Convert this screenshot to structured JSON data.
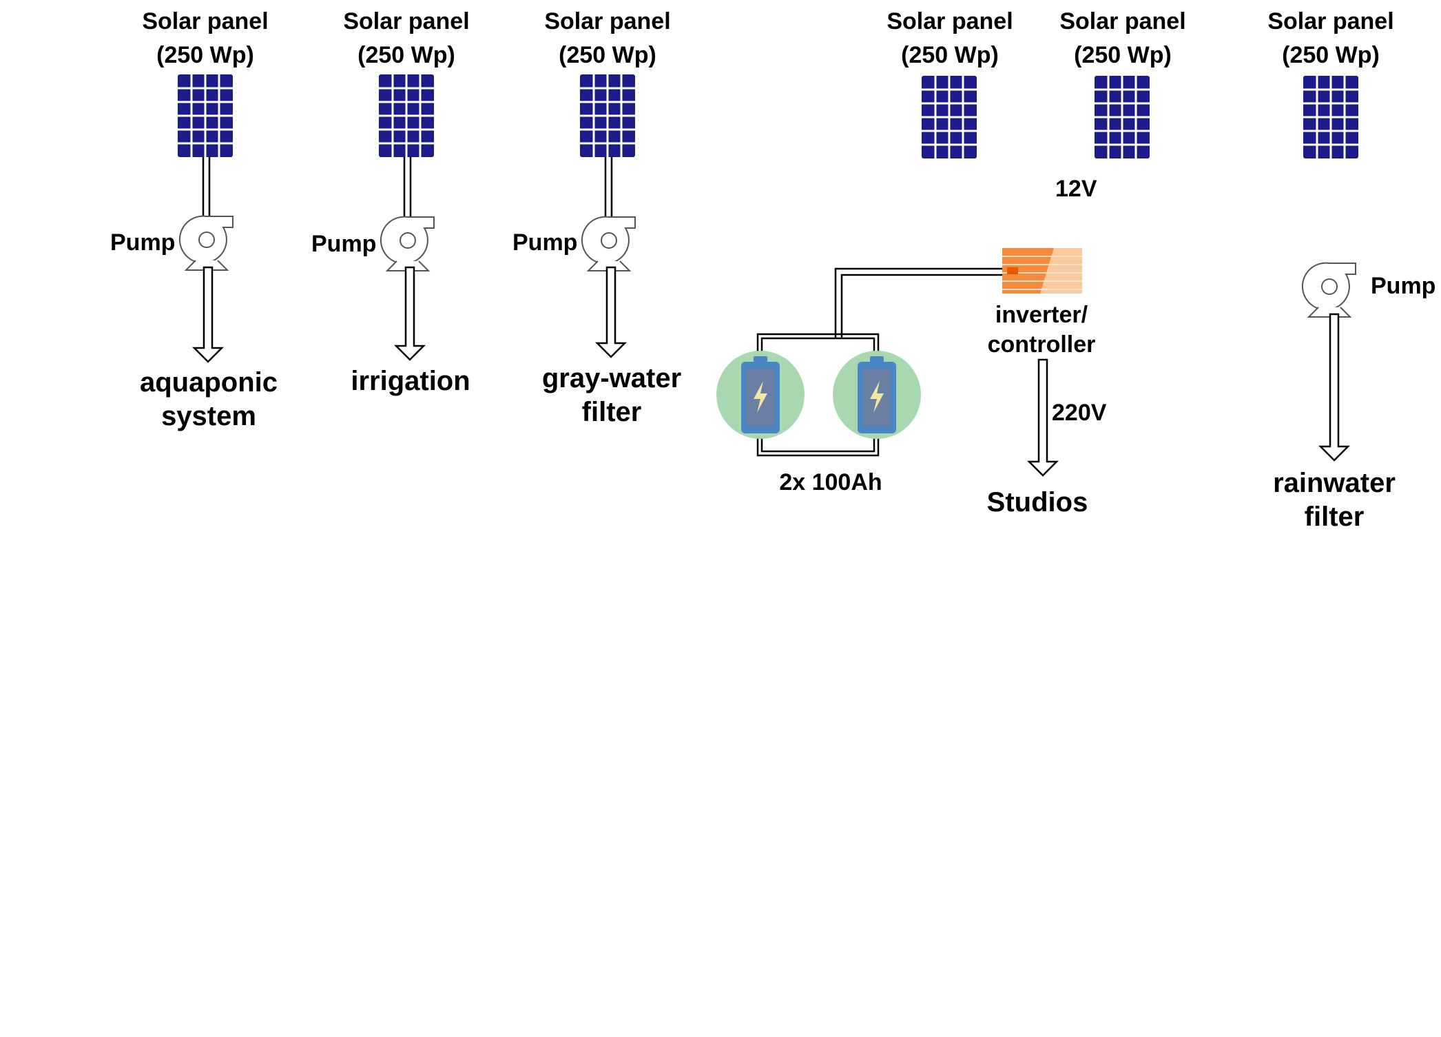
{
  "panels": [
    {
      "name": "Solar panel",
      "rating": "(250 Wp)"
    },
    {
      "name": "Solar panel",
      "rating": "(250 Wp)"
    },
    {
      "name": "Solar panel",
      "rating": "(250 Wp)"
    },
    {
      "name": "Solar panel",
      "rating": "(250 Wp)"
    },
    {
      "name": "Solar panel",
      "rating": "(250 Wp)"
    },
    {
      "name": "Solar panel",
      "rating": "(250 Wp)"
    }
  ],
  "pumps": [
    "Pump",
    "Pump",
    "Pump",
    "Pump"
  ],
  "destinations": {
    "aquaponic": [
      "aquaponic",
      "system"
    ],
    "irrigation": "irrigation",
    "graywater": [
      "gray-water",
      "filter"
    ],
    "studios": "Studios",
    "rainwater": [
      "rainwater",
      "filter"
    ]
  },
  "voltage_dc": "12V",
  "voltage_ac": "220V",
  "inverter": [
    "inverter/",
    "controller"
  ],
  "battery_label": "2x 100Ah",
  "colors": {
    "panel": "#1b1b8a",
    "panel_grid": "#ffffff",
    "battery_bg": "#a8d8b0",
    "battery_body": "#4a86c5",
    "battery_cell": "#6a7fa3",
    "bolt": "#f3e6a0",
    "inverter": "#f6893a",
    "inverter_light": "#f9c9a0",
    "line": "#000000"
  }
}
